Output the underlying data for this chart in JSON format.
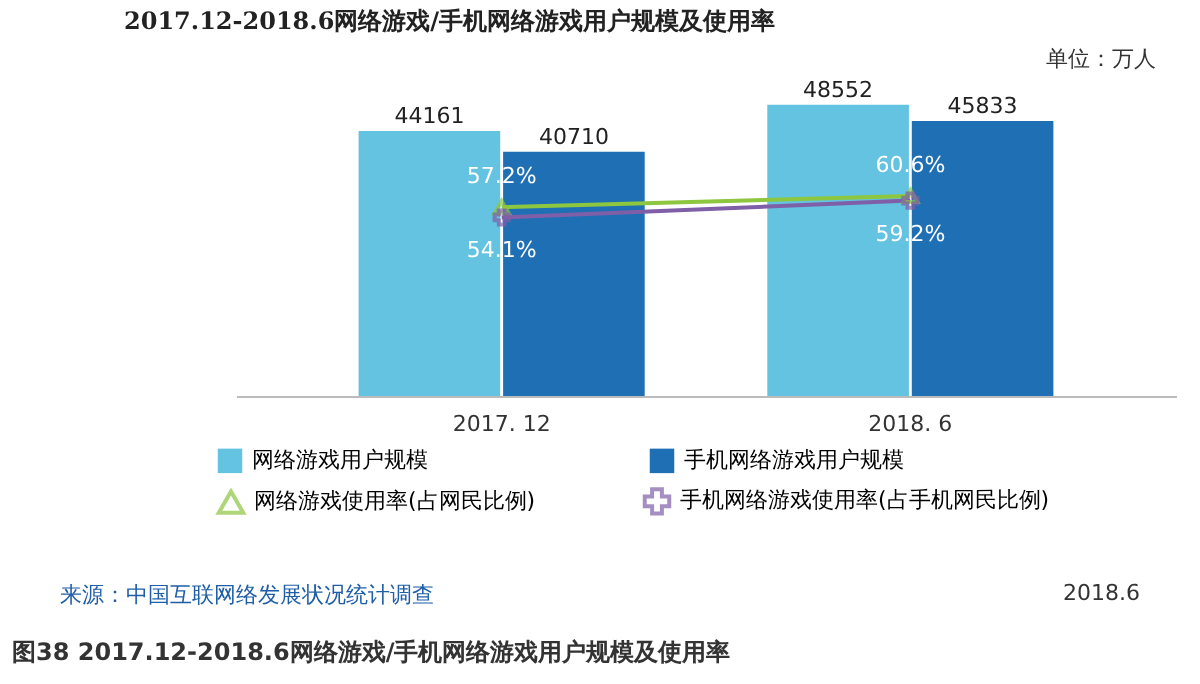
{
  "chart_data": {
    "type": "bar",
    "title": "2017.12-2018.6网络游戏/手机网络游戏用户规模及使用率",
    "categories": [
      "2017. 12",
      "2018. 6"
    ],
    "series": [
      {
        "name": "网络游戏用户规模",
        "color": "#63c3e0",
        "values": [
          44161,
          48552
        ]
      },
      {
        "name": "手机网络游戏用户规模",
        "color": "#1f6fb5",
        "values": [
          40710,
          45833
        ]
      },
      {
        "name": "网络游戏使用率(占网民比例)",
        "type": "line",
        "axis": "y2",
        "marker": "triangle",
        "color": "#8dc63f",
        "values": [
          57.2,
          60.6
        ],
        "value_labels": [
          "57.2%",
          "60.6%"
        ]
      },
      {
        "name": "手机网络游戏使用率(占手机网民比例)",
        "type": "line",
        "axis": "y2",
        "marker": "cross",
        "color": "#7f5fa8",
        "values": [
          54.1,
          59.2
        ],
        "value_labels": [
          "54.1%",
          "59.2%"
        ]
      }
    ],
    "tick_labels": "x",
    "data_labels": true,
    "legend": "bottom",
    "annotations": [
      "单位：万人",
      "来源：中国互联网络发展状况统计调查",
      "2018.6",
      "图38 2017.12-2018.6网络游戏/手机网络游戏用户规模及使用率"
    ]
  }
}
